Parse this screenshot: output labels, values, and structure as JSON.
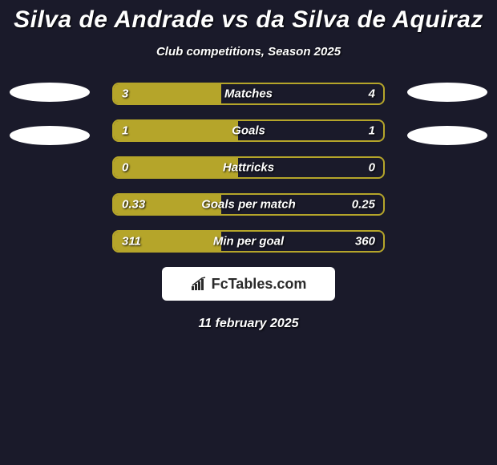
{
  "title": "Silva de Andrade vs da Silva de Aquiraz",
  "subtitle": "Club competitions, Season 2025",
  "date": "11 february 2025",
  "logo_text": "FcTables.com",
  "background_color": "#1a1a2a",
  "bar_color_left": "#b5a52a",
  "bar_fill_color": "#b5a52a",
  "border_color": "#b5a52a",
  "stats": [
    {
      "label": "Matches",
      "left_val": "3",
      "right_val": "4",
      "left_pct": 40,
      "right_pct": 0
    },
    {
      "label": "Goals",
      "left_val": "1",
      "right_val": "1",
      "left_pct": 46,
      "right_pct": 0
    },
    {
      "label": "Hattricks",
      "left_val": "0",
      "right_val": "0",
      "left_pct": 46,
      "right_pct": 0
    },
    {
      "label": "Goals per match",
      "left_val": "0.33",
      "right_val": "0.25",
      "left_pct": 40,
      "right_pct": 0
    },
    {
      "label": "Min per goal",
      "left_val": "311",
      "right_val": "360",
      "left_pct": 40,
      "right_pct": 0
    }
  ],
  "placeholders": {
    "left_count": 2,
    "right_count": 2
  },
  "typography": {
    "title_fontsize": 30,
    "subtitle_fontsize": 15,
    "stat_fontsize": 15,
    "date_fontsize": 16
  }
}
